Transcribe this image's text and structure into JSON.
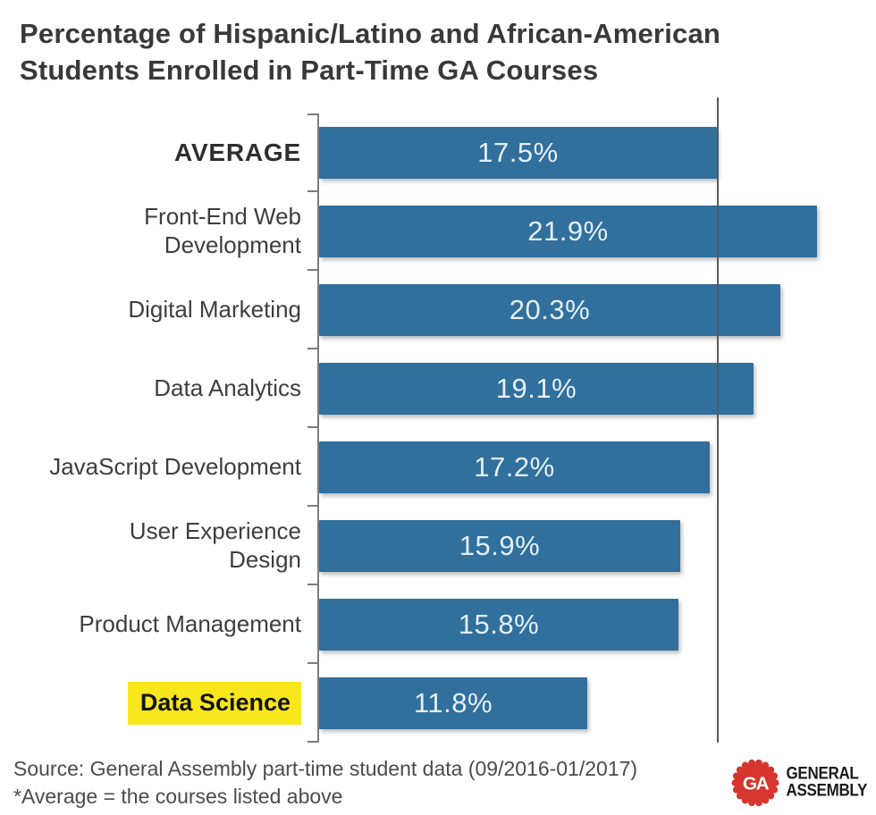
{
  "title": "Percentage of Hispanic/Latino and African-American Students Enrolled in Part-Time GA Courses",
  "chart_data": {
    "type": "bar",
    "orientation": "horizontal",
    "title": "Percentage of Hispanic/Latino and African-American Students Enrolled in Part-Time GA Courses",
    "categories": [
      "AVERAGE",
      "Front-End Web Development",
      "Digital Marketing",
      "Data Analytics",
      "JavaScript Development",
      "User Experience Design",
      "Product Management",
      "Data Science"
    ],
    "category_display": [
      "AVERAGE",
      "Front-End Web\nDevelopment",
      "Digital Marketing",
      "Data Analytics",
      "JavaScript Development",
      "User Experience\nDesign",
      "Product Management",
      "Data Science"
    ],
    "values": [
      17.5,
      21.9,
      20.3,
      19.1,
      17.2,
      15.9,
      15.8,
      11.8
    ],
    "value_labels": [
      "17.5%",
      "21.9%",
      "20.3%",
      "19.1%",
      "17.2%",
      "15.9%",
      "15.8%",
      "11.8%"
    ],
    "xlabel": "",
    "ylabel": "",
    "xlim": [
      0,
      24.5
    ],
    "grid": false,
    "legend": "none",
    "reference_line": {
      "value": 17.5,
      "meaning": "average of the courses listed"
    },
    "emphasized_category": "AVERAGE",
    "highlighted_category": "Data Science",
    "bar_color": "#316F9C",
    "value_label_color": "#E4F0F8",
    "highlight_color": "#F8E71C",
    "axis_color": "#7B7C7F",
    "reference_line_color": "#58595B"
  },
  "footer": {
    "source_line1": "Source: General Assembly part-time student data (09/2016-01/2017)",
    "source_line2": "*Average = the courses listed above",
    "logo": {
      "monogram": "GA",
      "name_line1": "GENERAL",
      "name_line2": "ASSEMBLY",
      "badge_color": "#D6362D",
      "monogram_color": "#FFFFFF"
    }
  }
}
